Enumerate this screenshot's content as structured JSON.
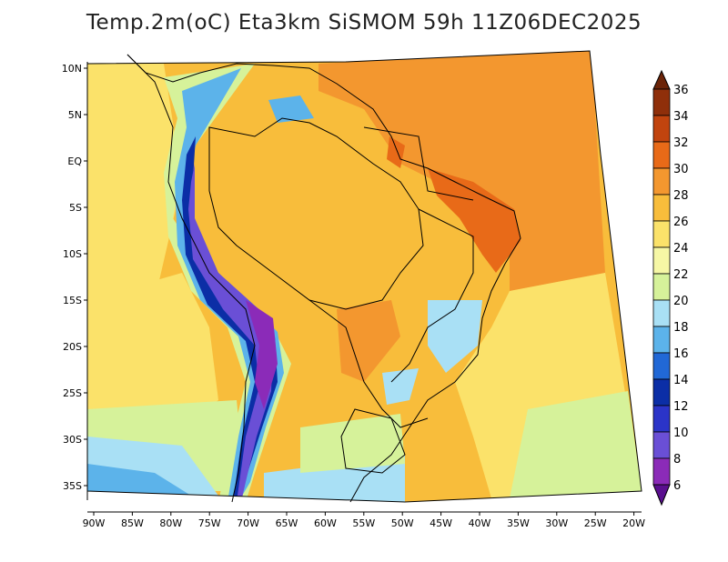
{
  "title": "Temp.2m(oC) Eta3km SiSMOM 59h 11Z06DEC2025",
  "map": {
    "lat_labels": [
      "10N",
      "5N",
      "EQ",
      "5S",
      "10S",
      "15S",
      "20S",
      "25S",
      "30S",
      "35S"
    ],
    "lon_labels": [
      "90W",
      "85W",
      "80W",
      "75W",
      "70W",
      "65W",
      "60W",
      "55W",
      "50W",
      "45W",
      "40W",
      "35W",
      "30W",
      "25W",
      "20W"
    ]
  },
  "colorbar": {
    "labels": [
      "36",
      "34",
      "32",
      "30",
      "28",
      "26",
      "24",
      "22",
      "20",
      "18",
      "16",
      "14",
      "12",
      "10",
      "8",
      "6"
    ],
    "colors": [
      "#6b2408",
      "#8f2f0a",
      "#c1440e",
      "#e86a18",
      "#f3972f",
      "#f8bd3b",
      "#fbe26a",
      "#f6f7a5",
      "#d6f29a",
      "#a9e0f5",
      "#5cb3ea",
      "#2168d6",
      "#0b2ea6",
      "#2b34c8",
      "#6a4fd6",
      "#8b2bb8",
      "#5a0f8f"
    ]
  }
}
